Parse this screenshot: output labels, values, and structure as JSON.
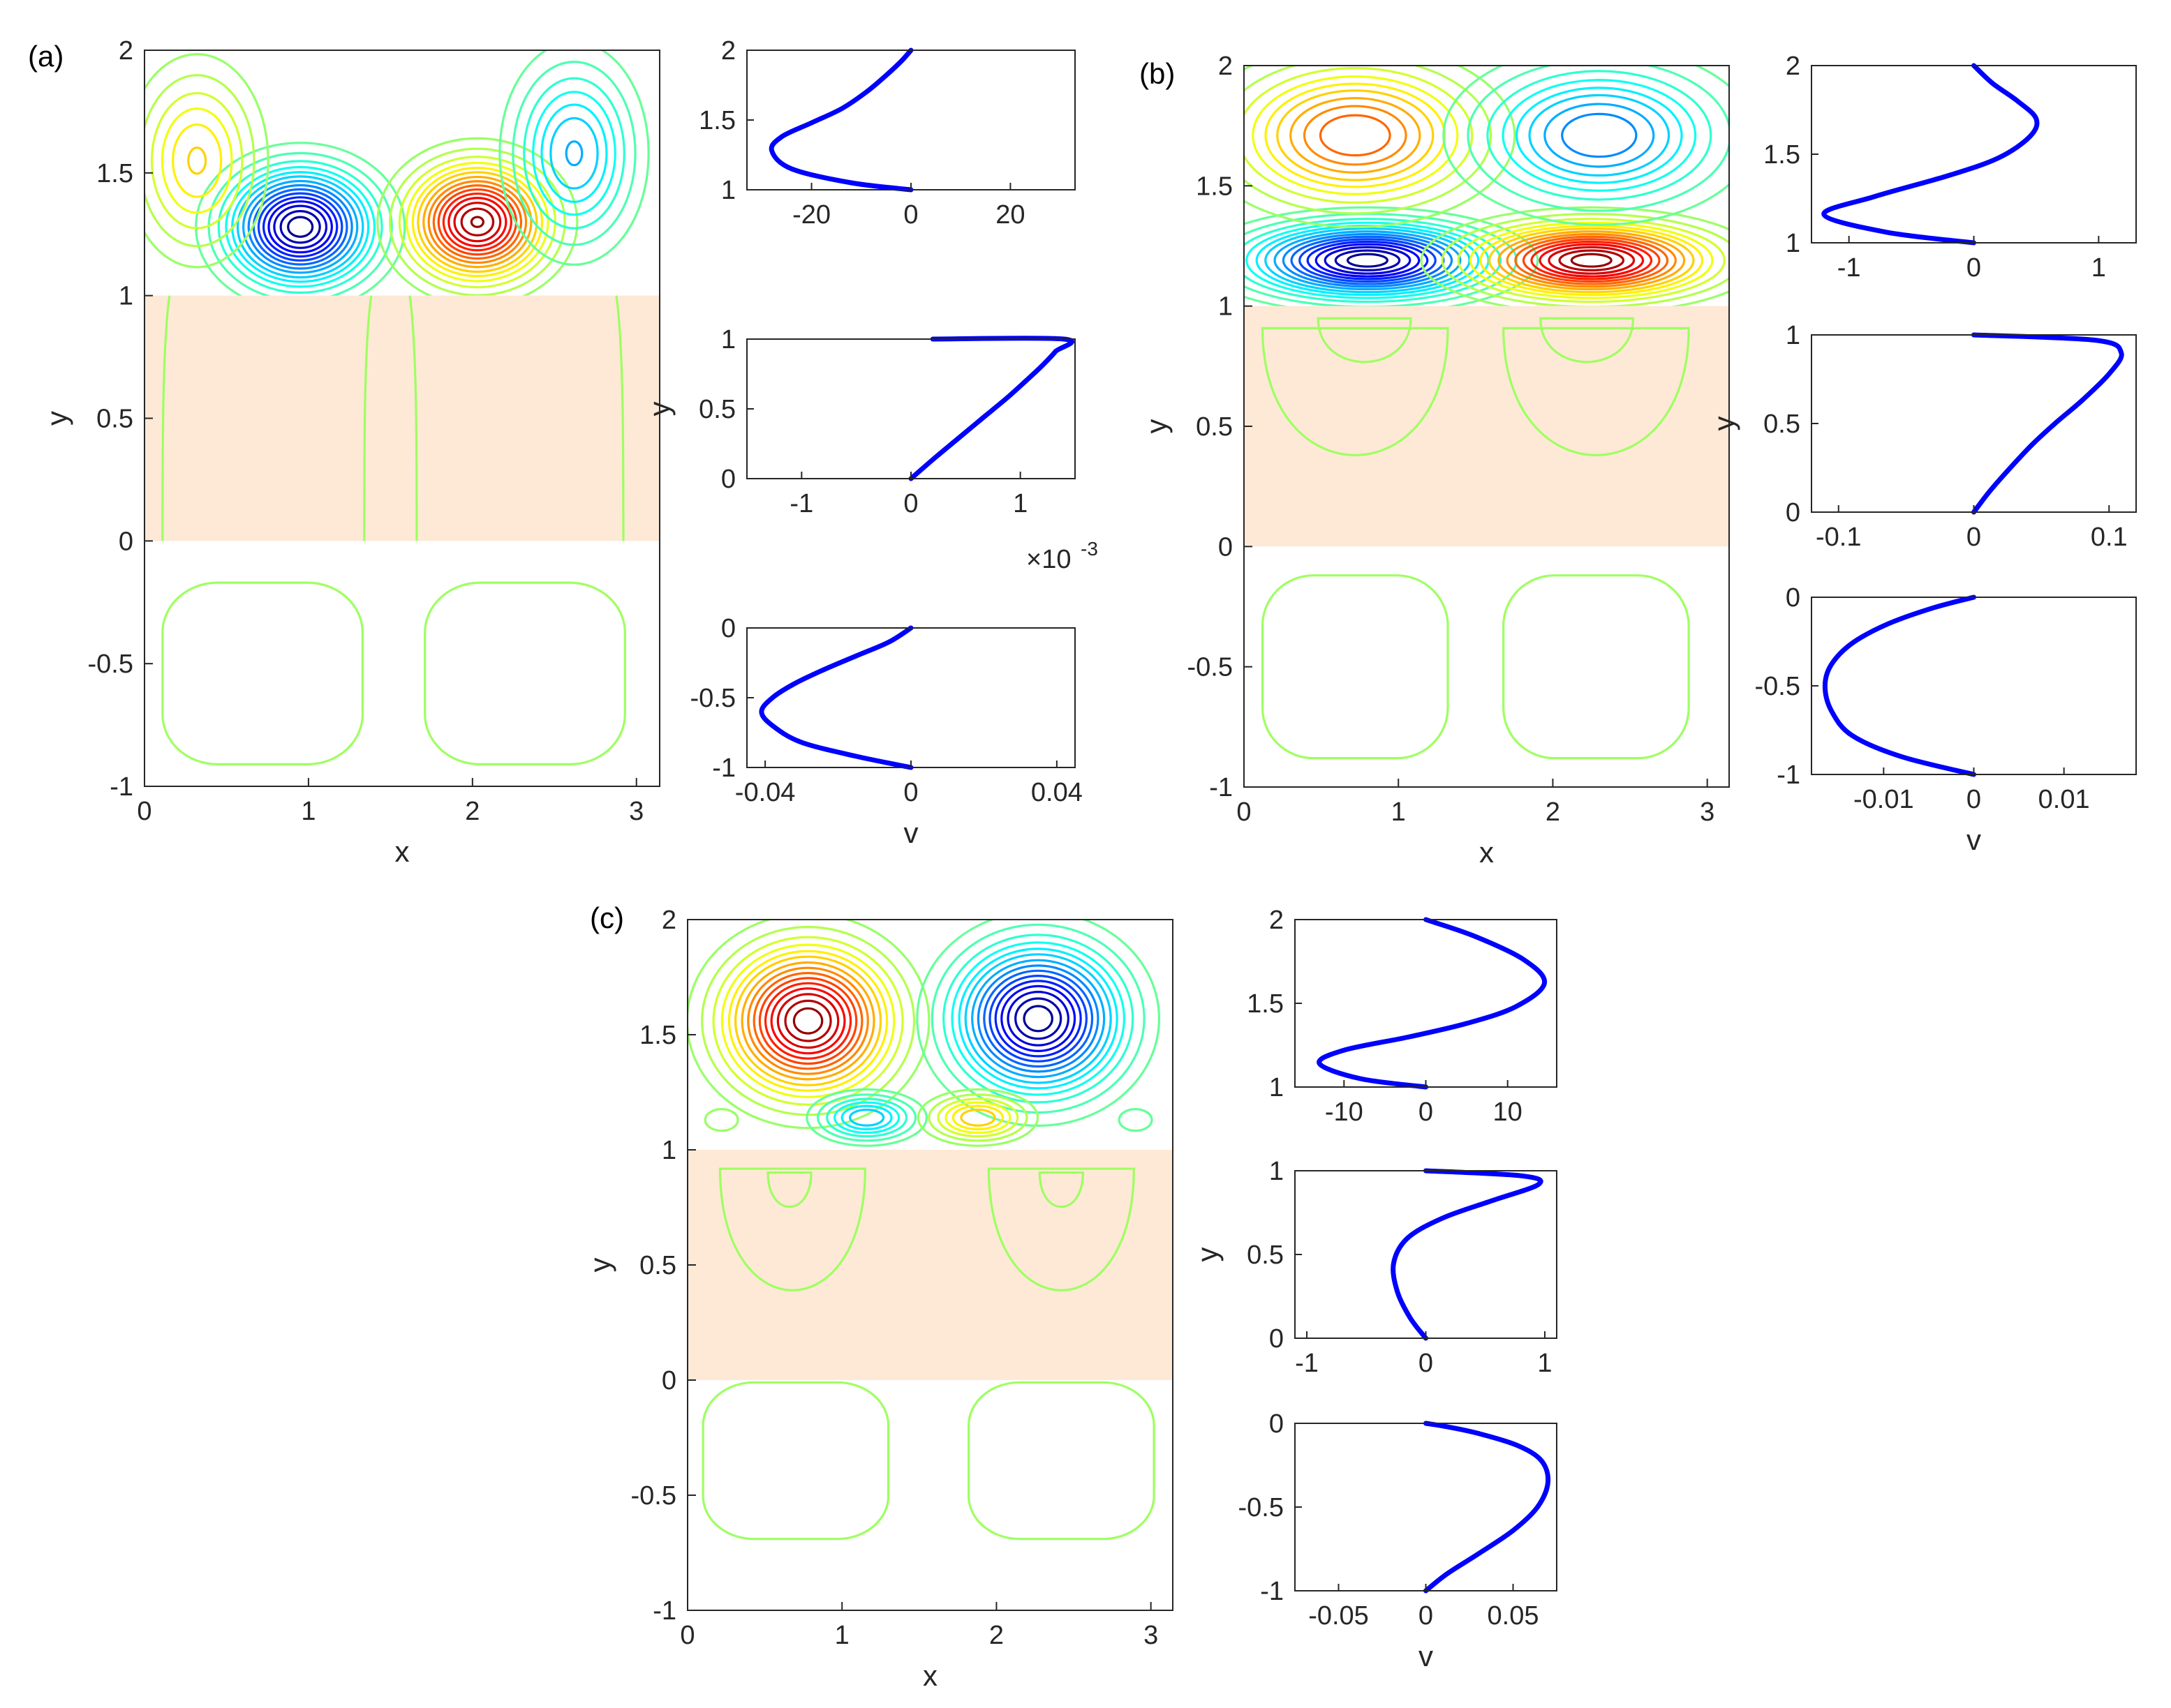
{
  "chart_data": {
    "type": "contour-with-profiles",
    "colors": {
      "porous_band": "#fde9d6",
      "profile_line": "#0000ff",
      "axis": "#262626",
      "colormap": [
        "#00008f",
        "#0000ff",
        "#0080ff",
        "#00ffff",
        "#80ff80",
        "#ffff00",
        "#ff8000",
        "#ff0000",
        "#800000"
      ]
    },
    "panels": [
      {
        "label": "(a)",
        "contour": {
          "xlabel": "x",
          "ylabel": "y",
          "xlim": [
            0,
            3.1416
          ],
          "ylim": [
            -1,
            2
          ],
          "xticks": [
            "0",
            "1",
            "2",
            "3"
          ],
          "yticks": [
            "-1",
            "-0.5",
            "0",
            "0.5",
            "1",
            "1.5",
            "2"
          ],
          "porous_region": [
            0,
            1
          ],
          "cells": [
            {
              "x": 0.95,
              "y": 1.28,
              "sx": 0.26,
              "sy": 0.14,
              "amp": -1.0
            },
            {
              "x": 2.03,
              "y": 1.3,
              "sx": 0.25,
              "sy": 0.14,
              "amp": 0.97
            },
            {
              "x": 0.32,
              "y": 1.55,
              "sx": 0.22,
              "sy": 0.22,
              "amp": 0.35
            },
            {
              "x": 2.62,
              "y": 1.58,
              "sx": 0.22,
              "sy": 0.22,
              "amp": -0.42
            }
          ],
          "lower_cells": [
            {
              "x": 0.72,
              "y": -0.54,
              "rx": 0.61,
              "ry": 0.37
            },
            {
              "x": 2.32,
              "y": -0.54,
              "rx": 0.61,
              "ry": 0.37
            }
          ],
          "porous_lines_x": [
            0.11,
            1.34,
            1.66,
            2.92
          ]
        },
        "profiles": [
          {
            "xlim": [
              -33,
              33
            ],
            "ylim": [
              1,
              2
            ],
            "xticks": [
              -20,
              0,
              20
            ],
            "yticks": [
              1,
              1.5,
              2
            ],
            "xtick_labels": [
              "-20",
              "0",
              "20"
            ],
            "ytick_labels": [
              "1",
              "1.5",
              "2"
            ],
            "x_multiplier": "",
            "v": [
              0,
              -12,
              -24,
              -28,
              -26,
              -20,
              -14,
              -9,
              -5,
              -2,
              0
            ],
            "y": [
              1.0,
              1.05,
              1.15,
              1.28,
              1.38,
              1.48,
              1.58,
              1.7,
              1.82,
              1.92,
              2.0
            ],
            "ylabel": "",
            "xlabel": ""
          },
          {
            "xlim": [
              -1.5,
              1.5
            ],
            "ylim": [
              0,
              1
            ],
            "xticks": [
              -1,
              0,
              1
            ],
            "yticks": [
              0,
              0.5,
              1
            ],
            "xtick_labels": [
              "-1",
              "0",
              "1"
            ],
            "ytick_labels": [
              "0",
              "0.5",
              "1"
            ],
            "x_multiplier": "×10",
            "x_multiplier_exp": "-3",
            "v": [
              0,
              0.22,
              0.45,
              0.68,
              0.88,
              1.05,
              1.2,
              1.32,
              1.4,
              0.2
            ],
            "y": [
              0.0,
              0.15,
              0.3,
              0.45,
              0.58,
              0.7,
              0.81,
              0.91,
              1.0,
              1.0
            ],
            "ylabel": "y",
            "xlabel": ""
          },
          {
            "xlim": [
              -0.045,
              0.045
            ],
            "ylim": [
              -1,
              0
            ],
            "xticks": [
              -0.04,
              0,
              0.04
            ],
            "yticks": [
              -1,
              -0.5,
              0
            ],
            "xtick_labels": [
              "-0.04",
              "0",
              "0.04"
            ],
            "ytick_labels": [
              "-1",
              "-0.5",
              "0"
            ],
            "x_multiplier": "",
            "v": [
              0,
              -0.015,
              -0.03,
              -0.038,
              -0.041,
              -0.038,
              -0.032,
              -0.024,
              -0.015,
              -0.006,
              0
            ],
            "y": [
              -1.0,
              -0.92,
              -0.82,
              -0.7,
              -0.6,
              -0.5,
              -0.4,
              -0.3,
              -0.2,
              -0.1,
              0.0
            ],
            "ylabel": "",
            "xlabel": "v"
          }
        ]
      },
      {
        "label": "(b)",
        "contour": {
          "xlabel": "x",
          "ylabel": "y",
          "xlim": [
            0,
            3.1416
          ],
          "ylim": [
            -1,
            2
          ],
          "xticks": [
            "0",
            "1",
            "2",
            "3"
          ],
          "yticks": [
            "-1",
            "-0.5",
            "0",
            "0.5",
            "1",
            "1.5",
            "2"
          ],
          "porous_region": [
            0,
            1
          ],
          "cells": [
            {
              "x": 0.8,
              "y": 1.19,
              "sx": 0.45,
              "sy": 0.09,
              "amp": -1.0
            },
            {
              "x": 2.25,
              "y": 1.19,
              "sx": 0.45,
              "sy": 0.09,
              "amp": 1.0
            },
            {
              "x": 0.72,
              "y": 1.71,
              "sx": 0.46,
              "sy": 0.17,
              "amp": 0.62
            },
            {
              "x": 2.3,
              "y": 1.71,
              "sx": 0.46,
              "sy": 0.17,
              "amp": -0.55
            }
          ],
          "lower_cells": [
            {
              "x": 0.72,
              "y": -0.5,
              "rx": 0.6,
              "ry": 0.38
            },
            {
              "x": 2.28,
              "y": -0.5,
              "rx": 0.6,
              "ry": 0.38
            }
          ],
          "porous_loops": [
            {
              "x": 0.72,
              "y": 0.62,
              "rx": 0.6,
              "ry": 0.32
            },
            {
              "x": 2.28,
              "y": 0.62,
              "rx": 0.6,
              "ry": 0.32
            },
            {
              "x": 0.78,
              "y": 0.85,
              "rx": 0.3,
              "ry": 0.11
            },
            {
              "x": 2.22,
              "y": 0.85,
              "rx": 0.3,
              "ry": 0.11
            }
          ]
        },
        "profiles": [
          {
            "xlim": [
              -1.3,
              1.3
            ],
            "ylim": [
              1,
              2
            ],
            "xticks": [
              -1,
              0,
              1
            ],
            "yticks": [
              1,
              1.5,
              2
            ],
            "xtick_labels": [
              "-1",
              "0",
              "1"
            ],
            "ytick_labels": [
              "1",
              "1.5",
              "2"
            ],
            "x_multiplier": "",
            "v": [
              0,
              -0.7,
              -1.2,
              -0.8,
              -0.2,
              0.2,
              0.45,
              0.5,
              0.35,
              0.15,
              0
            ],
            "y": [
              1.0,
              1.06,
              1.16,
              1.26,
              1.38,
              1.48,
              1.6,
              1.7,
              1.8,
              1.9,
              2.0
            ],
            "ylabel": "",
            "xlabel": ""
          },
          {
            "xlim": [
              -0.12,
              0.12
            ],
            "ylim": [
              0,
              1
            ],
            "xticks": [
              -0.1,
              0,
              0.1
            ],
            "yticks": [
              0,
              0.5,
              1
            ],
            "xtick_labels": [
              "-0.1",
              "0",
              "0.1"
            ],
            "ytick_labels": [
              "0",
              "0.5",
              "1"
            ],
            "x_multiplier": "",
            "v": [
              0,
              0.012,
              0.027,
              0.043,
              0.06,
              0.08,
              0.1,
              0.109,
              0.09,
              0
            ],
            "y": [
              0.0,
              0.12,
              0.25,
              0.38,
              0.5,
              0.63,
              0.78,
              0.9,
              0.97,
              1.0
            ],
            "ylabel": "y",
            "xlabel": ""
          },
          {
            "xlim": [
              -0.018,
              0.018
            ],
            "ylim": [
              -1,
              0
            ],
            "xticks": [
              -0.01,
              0,
              0.01
            ],
            "yticks": [
              -1,
              -0.5,
              0
            ],
            "xtick_labels": [
              "-0.01",
              "0",
              "0.01"
            ],
            "ytick_labels": [
              "-1",
              "-0.5",
              "0"
            ],
            "x_multiplier": "",
            "v": [
              0,
              -0.008,
              -0.0135,
              -0.0158,
              -0.0165,
              -0.0158,
              -0.0135,
              -0.0095,
              -0.0045,
              0
            ],
            "y": [
              -1.0,
              -0.9,
              -0.78,
              -0.64,
              -0.5,
              -0.38,
              -0.26,
              -0.15,
              -0.06,
              0.0
            ],
            "ylabel": "",
            "xlabel": "v"
          }
        ]
      },
      {
        "label": "(c)",
        "contour": {
          "xlabel": "x",
          "ylabel": "y",
          "xlim": [
            0,
            3.1416
          ],
          "ylim": [
            -1,
            2
          ],
          "xticks": [
            "0",
            "1",
            "2",
            "3"
          ],
          "yticks": [
            "-1",
            "-0.5",
            "0",
            "0.5",
            "1",
            "1.5",
            "2"
          ],
          "porous_region": [
            0,
            1
          ],
          "cells": [
            {
              "x": 0.78,
              "y": 1.56,
              "sx": 0.32,
              "sy": 0.19,
              "amp": 1.0
            },
            {
              "x": 2.27,
              "y": 1.57,
              "sx": 0.32,
              "sy": 0.19,
              "amp": -1.0
            },
            {
              "x": 1.16,
              "y": 1.14,
              "sx": 0.19,
              "sy": 0.06,
              "amp": -0.4
            },
            {
              "x": 1.88,
              "y": 1.14,
              "sx": 0.19,
              "sy": 0.06,
              "amp": 0.4
            },
            {
              "x": 0.22,
              "y": 1.13,
              "sx": 0.09,
              "sy": 0.04,
              "amp": 0.1
            },
            {
              "x": 2.9,
              "y": 1.13,
              "sx": 0.09,
              "sy": 0.04,
              "amp": -0.1
            }
          ],
          "lower_cells": [
            {
              "x": 0.7,
              "y": -0.35,
              "rx": 0.6,
              "ry": 0.34
            },
            {
              "x": 2.42,
              "y": -0.35,
              "rx": 0.6,
              "ry": 0.34
            }
          ],
          "porous_loops": [
            {
              "x": 0.68,
              "y": 0.63,
              "rx": 0.47,
              "ry": 0.32
            },
            {
              "x": 2.42,
              "y": 0.63,
              "rx": 0.47,
              "ry": 0.32
            },
            {
              "x": 0.66,
              "y": 0.82,
              "rx": 0.14,
              "ry": 0.09
            },
            {
              "x": 2.42,
              "y": 0.82,
              "rx": 0.14,
              "ry": 0.09
            }
          ]
        },
        "profiles": [
          {
            "xlim": [
              -16,
              16
            ],
            "ylim": [
              1,
              2
            ],
            "xticks": [
              -10,
              0,
              10
            ],
            "yticks": [
              1,
              1.5,
              2
            ],
            "xtick_labels": [
              "-10",
              "0",
              "10"
            ],
            "ytick_labels": [
              "1",
              "1.5",
              "2"
            ],
            "x_multiplier": "",
            "v": [
              0,
              -8,
              -13,
              -10,
              -2,
              5,
              11,
              14.5,
              12,
              6,
              0
            ],
            "y": [
              1.0,
              1.05,
              1.14,
              1.22,
              1.3,
              1.38,
              1.48,
              1.62,
              1.76,
              1.9,
              2.0
            ],
            "ylabel": "",
            "xlabel": ""
          },
          {
            "xlim": [
              -1.1,
              1.1
            ],
            "ylim": [
              0,
              1
            ],
            "xticks": [
              -1,
              0,
              1
            ],
            "yticks": [
              0,
              0.5,
              1
            ],
            "xtick_labels": [
              "-1",
              "0",
              "1"
            ],
            "ytick_labels": [
              "0",
              "0.5",
              "1"
            ],
            "x_multiplier": "",
            "v": [
              0,
              -0.13,
              -0.24,
              -0.27,
              -0.15,
              0.15,
              0.55,
              0.95,
              0.8,
              0
            ],
            "y": [
              0.0,
              0.12,
              0.28,
              0.45,
              0.6,
              0.72,
              0.82,
              0.92,
              0.97,
              1.0
            ],
            "ylabel": "y",
            "xlabel": ""
          },
          {
            "xlim": [
              -0.075,
              0.075
            ],
            "ylim": [
              -1,
              0
            ],
            "xticks": [
              -0.05,
              0,
              0.05
            ],
            "yticks": [
              -1,
              -0.5,
              0
            ],
            "xtick_labels": [
              "-0.05",
              "0",
              "0.05"
            ],
            "ytick_labels": [
              "-1",
              "-0.5",
              "0"
            ],
            "x_multiplier": "",
            "v": [
              0,
              0.012,
              0.03,
              0.05,
              0.064,
              0.07,
              0.066,
              0.052,
              0.03,
              0.012,
              0
            ],
            "y": [
              -1.0,
              -0.9,
              -0.78,
              -0.64,
              -0.5,
              -0.35,
              -0.22,
              -0.13,
              -0.06,
              -0.02,
              0.0
            ],
            "ylabel": "",
            "xlabel": "v"
          }
        ]
      }
    ]
  }
}
